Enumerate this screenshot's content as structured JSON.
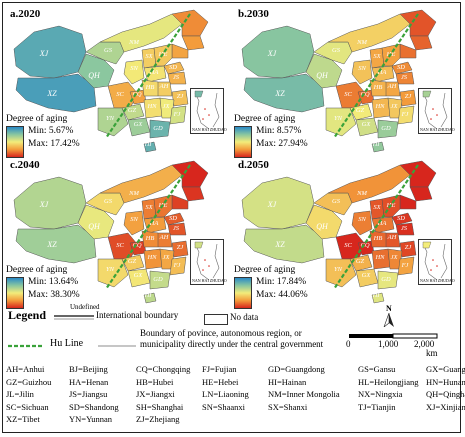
{
  "panels": [
    {
      "label": "a.2020",
      "legend_title": "Degree of aging",
      "min": "Min: 5.67%",
      "max": "Max: 17.42%"
    },
    {
      "label": "b.2030",
      "legend_title": "Degree of aging",
      "min": "Min: 8.57%",
      "max": "Max: 27.94%"
    },
    {
      "label": "c.2040",
      "legend_title": "Degree of aging",
      "min": "Min: 13.64%",
      "max": "Max: 38.30%"
    },
    {
      "label": "d.2050",
      "legend_title": "Degree of aging",
      "min": "Min: 17.84%",
      "max": "Max: 44.06%"
    }
  ],
  "map_labels": [
    "XJ",
    "XZ",
    "QH",
    "GS",
    "NM",
    "SX",
    "HE",
    "SD",
    "SN",
    "HA",
    "SC",
    "CQ",
    "HB",
    "AH",
    "JS",
    "GZ",
    "HN",
    "JX",
    "ZJ",
    "YN",
    "GX",
    "GD",
    "FJ",
    "HI"
  ],
  "inset_label": "NAN HAI   ZHUDAO",
  "colors": {
    "low": "#2a8ac6",
    "midlow": "#89c6a0",
    "mid": "#f3ec7a",
    "midhigh": "#f39b3b",
    "high": "#d7261d",
    "hu_line": "#3aa23a"
  },
  "legend": {
    "title": "Legend",
    "undefined": "Undefined",
    "intl_boundary": "International boundary",
    "no_data": "No data",
    "hu_line": "Hu Line",
    "province_boundary_1": "Boundary of povince, autonomous region, or",
    "province_boundary_2": "municipality directly under the central government",
    "north": "N",
    "scale": {
      "zero": "0",
      "mid": "1,000",
      "max": "2,000",
      "unit": "km"
    }
  },
  "abbreviations": [
    [
      "AH=Anhui",
      "BJ=Beijing",
      "CQ=Chongqing",
      "FJ=Fujian",
      "GD=Guangdong",
      "GS=Gansu",
      "GX=Guangxi"
    ],
    [
      "GZ=Guizhou",
      "HA=Henan",
      "HB=Hubei",
      "HE=Hebei",
      "HI=Hainan",
      "HL=Heilongjiang",
      "HN=Hunan"
    ],
    [
      "JL=Jilin",
      "JS=Jiangsu",
      "JX=Jiangxi",
      "LN=Liaoning",
      "NM=Inner Mongolia",
      "NX=Ningxia",
      "QH=Qinghai"
    ],
    [
      "SC=Sichuan",
      "SD=Shandong",
      "SH=Shanghai",
      "SN=Shaanxi",
      "SX=Shanxi",
      "TJ=Tianjin",
      "XJ=Xinjiang"
    ],
    [
      "XZ=Tibet",
      "YN=Yunnan",
      "ZJ=Zhejiang"
    ]
  ]
}
